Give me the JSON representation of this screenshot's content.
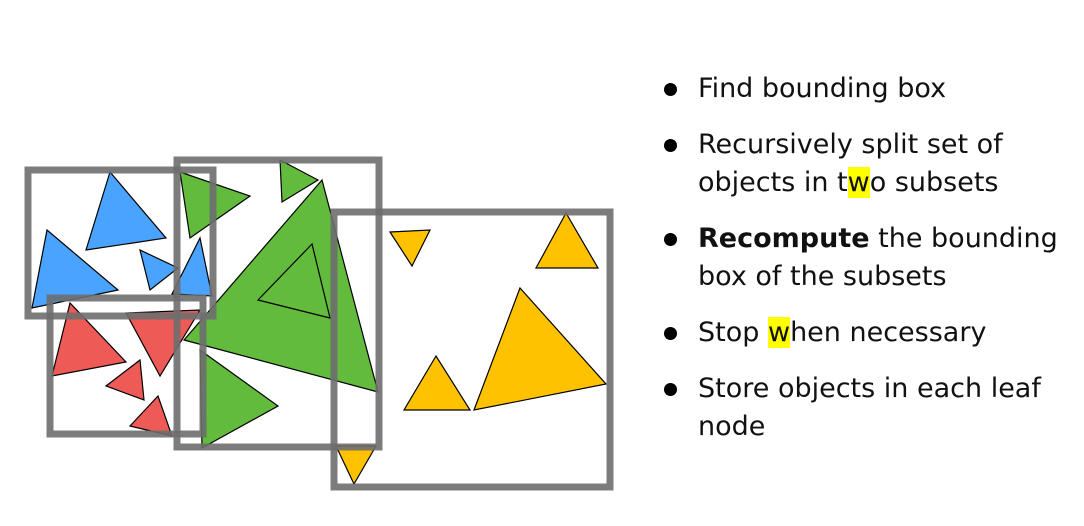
{
  "bullets": [
    {
      "parts": [
        {
          "text": "Find bounding box"
        }
      ]
    },
    {
      "parts": [
        {
          "text": "Recursively split set of objects in t"
        },
        {
          "text": "w",
          "highlight": true
        },
        {
          "text": "o subsets"
        }
      ]
    },
    {
      "parts": [
        {
          "text": "Recompute",
          "bold": true
        },
        {
          "text": " the bounding box of the subsets"
        }
      ]
    },
    {
      "parts": [
        {
          "text": "Stop "
        },
        {
          "text": "w",
          "highlight": true
        },
        {
          "text": "hen necessary"
        }
      ]
    },
    {
      "parts": [
        {
          "text": "Store objects in each leaf node"
        }
      ]
    }
  ],
  "colors": {
    "blue": "#4aa4ff",
    "green": "#62bb3c",
    "red": "#ee5a56",
    "yellow": "#ffc200",
    "box": "#6e6e6e",
    "highlight": "#ffff00"
  }
}
